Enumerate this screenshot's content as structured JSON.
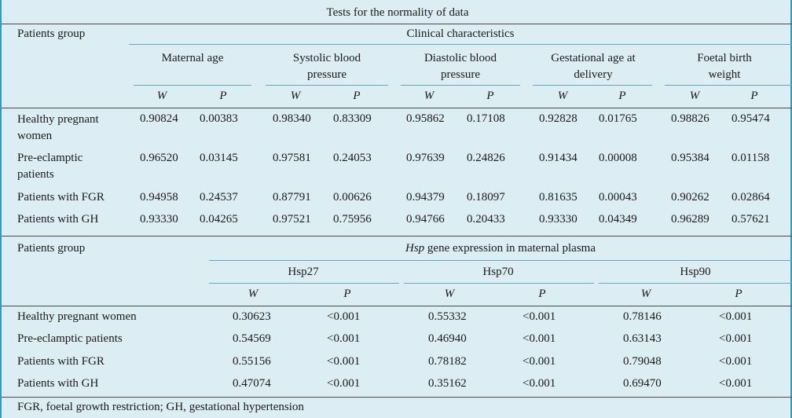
{
  "title": "Tests for the normality of data",
  "table1": {
    "group_header": "Patients group",
    "span_header": "Clinical characteristics",
    "columns": [
      "Maternal age",
      "Systolic blood pressure",
      "Diastolic blood pressure",
      "Gestational age at delivery",
      "Foetal birth weight"
    ],
    "sub_w": "W",
    "sub_p": "P",
    "rows": [
      {
        "group": "Healthy pregnant women",
        "values": [
          "0.90824",
          "0.00383",
          "0.98340",
          "0.83309",
          "0.95862",
          "0.17108",
          "0.92828",
          "0.01765",
          "0.98826",
          "0.95474"
        ]
      },
      {
        "group": "Pre-eclamptic patients",
        "values": [
          "0.96520",
          "0.03145",
          "0.97581",
          "0.24053",
          "0.97639",
          "0.24826",
          "0.91434",
          "0.00008",
          "0.95384",
          "0.01158"
        ]
      },
      {
        "group": "Patients with  FGR",
        "values": [
          "0.94958",
          "0.24537",
          "0.87791",
          "0.00626",
          "0.94379",
          "0.18097",
          "0.81635",
          "0.00043",
          "0.90262",
          "0.02864"
        ]
      },
      {
        "group": "Patients with GH",
        "values": [
          "0.93330",
          "0.04265",
          "0.97521",
          "0.75956",
          "0.94766",
          "0.20433",
          "0.93330",
          "0.04349",
          "0.96289",
          "0.57621"
        ]
      }
    ]
  },
  "table2": {
    "group_header": "Patients group",
    "span_header_italic": "Hsp",
    "span_header_rest": " gene expression in maternal plasma",
    "columns": [
      "Hsp27",
      "Hsp70",
      "Hsp90"
    ],
    "sub_w": "W",
    "sub_p": "P",
    "rows": [
      {
        "group": "Healthy pregnant women",
        "values": [
          "0.30623",
          "<0.001",
          "0.55332",
          "<0.001",
          "0.78146",
          "<0.001"
        ]
      },
      {
        "group": "Pre-eclamptic patients",
        "values": [
          "0.54569",
          "<0.001",
          "0.46940",
          "<0.001",
          "0.63143",
          "<0.001"
        ]
      },
      {
        "group": "Patients with FGR",
        "values": [
          "0.55156",
          "<0.001",
          "0.78182",
          "<0.001",
          "0.79048",
          "<0.001"
        ]
      },
      {
        "group": "Patients with GH",
        "values": [
          "0.47074",
          "<0.001",
          "0.35162",
          "<0.001",
          "0.69470",
          "<0.001"
        ]
      }
    ]
  },
  "footnote": "FGR, foetal growth restriction; GH, gestational hypertension"
}
